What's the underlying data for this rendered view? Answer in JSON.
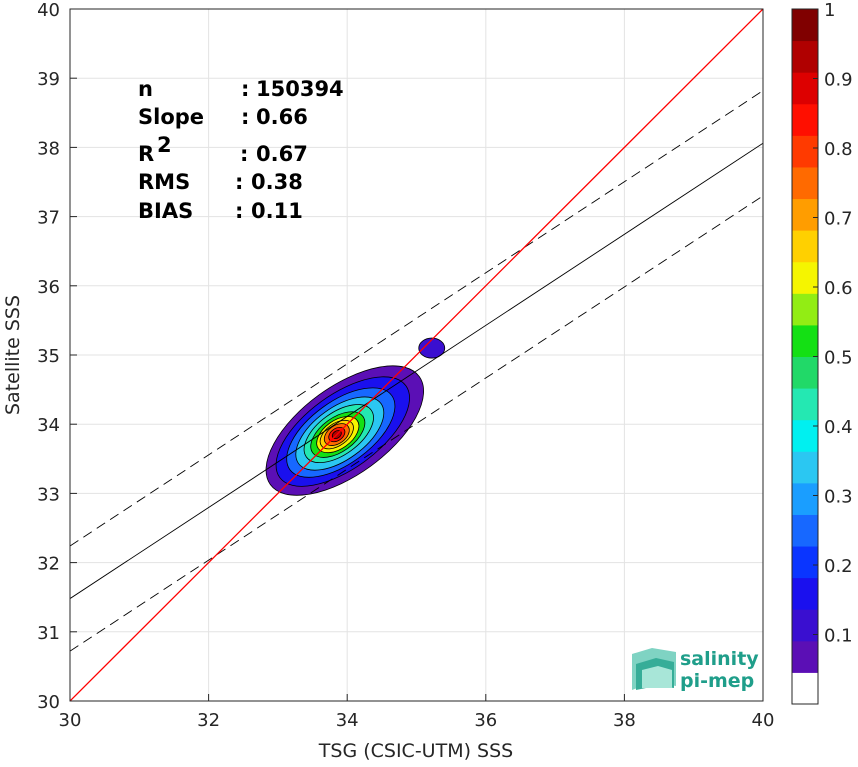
{
  "chart_data": {
    "type": "heatmap",
    "title": "",
    "xlabel": "TSG (CSIC-UTM) SSS",
    "ylabel": "Satellite SSS",
    "xlim": [
      30,
      40
    ],
    "ylim": [
      30,
      40
    ],
    "xticks": [
      "30",
      "32",
      "34",
      "36",
      "38",
      "40"
    ],
    "yticks": [
      "30",
      "31",
      "32",
      "33",
      "34",
      "35",
      "36",
      "37",
      "38",
      "39",
      "40"
    ],
    "grid": true,
    "stats": [
      {
        "label": "n",
        "sep": ":",
        "value": "150394"
      },
      {
        "label": "Slope",
        "sep": ":",
        "value": "0.66"
      },
      {
        "label": "R",
        "sup": "2",
        "sep": ":",
        "value": "0.67"
      },
      {
        "label": "RMS",
        "sep": ":",
        "value": "0.38"
      },
      {
        "label": "BIAS",
        "sep": ":",
        "value": "0.11"
      }
    ],
    "lines": {
      "identity": {
        "x": [
          30,
          40
        ],
        "y": [
          30,
          40
        ],
        "color": "#ff0000"
      },
      "regression": {
        "x": [
          30,
          40
        ],
        "y": [
          31.48,
          38.06
        ],
        "color": "#000000"
      },
      "upper_bound": {
        "x": [
          30,
          40
        ],
        "y": [
          32.24,
          38.82
        ],
        "style": "dashed"
      },
      "lower_bound": {
        "x": [
          30,
          40
        ],
        "y": [
          30.72,
          37.3
        ],
        "style": "dashed"
      }
    },
    "density_center": {
      "x": 33.85,
      "y": 33.85
    },
    "secondary_blob": {
      "x": 35.22,
      "y": 35.1,
      "level": 0.1
    },
    "colorbar": {
      "ticks": [
        "0.1",
        "0.2",
        "0.3",
        "0.4",
        "0.5",
        "0.6",
        "0.7",
        "0.8",
        "0.9",
        "1"
      ],
      "range": [
        0,
        1
      ],
      "colors": [
        "#ffffff",
        "#5b0fb5",
        "#3a0fd0",
        "#1a10ee",
        "#0a35ff",
        "#1768ff",
        "#1a9eff",
        "#2bc7f2",
        "#00f0f0",
        "#24e8b2",
        "#21d968",
        "#14e014",
        "#92ed14",
        "#f5f500",
        "#ffd000",
        "#ff9d00",
        "#ff6a00",
        "#ff3a00",
        "#ff0f00",
        "#dd0000",
        "#b00000",
        "#800000"
      ]
    }
  },
  "logo": {
    "line1": "salinity",
    "line2": "pi-mep"
  }
}
